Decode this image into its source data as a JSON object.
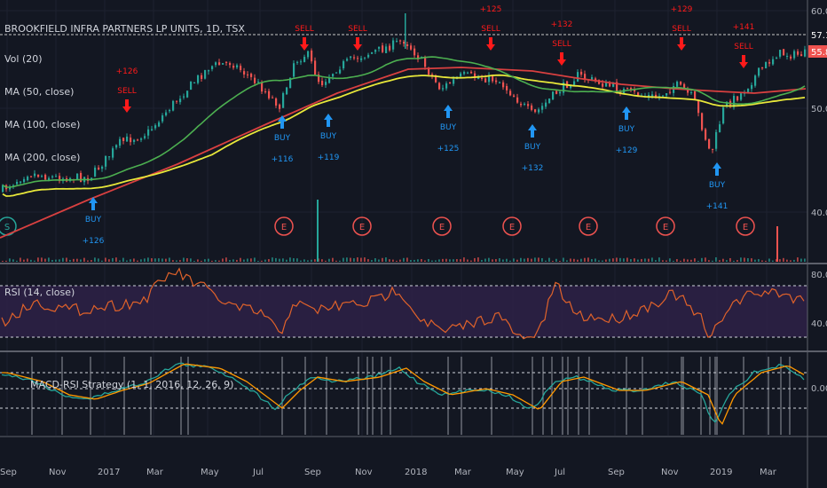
{
  "header": {
    "title": "BROOKFIELD INFRA PARTNERS LP UNITS, 1D, TSX",
    "studies": [
      "Vol (20)",
      "MA (50, close)",
      "MA (100, close)",
      "MA (200, close)"
    ]
  },
  "rsi_label": "RSI (14, close)",
  "macd_label": "MACD-RSI Strategy (1, 1, 2016, 12, 26, 9)",
  "colors": {
    "background": "#131722",
    "price_up": "#26a69a",
    "price_down": "#ef5350",
    "ma50": "#4caf50",
    "ma100": "#e8e83a",
    "ma200": "#d94040",
    "rsi": "#e0622a",
    "rsi_band": "#2e2146",
    "macd": "#26a69a",
    "signal": "#ff9800",
    "buy": "#2196f3",
    "sell": "#ff1a1a",
    "last_price_tag": "#ef5350"
  },
  "axis": {
    "time_labels": [
      "Sep",
      "Nov",
      "2017",
      "Mar",
      "May",
      "Jul",
      "Sep",
      "Nov",
      "2018",
      "Mar",
      "May",
      "Jul",
      "Sep",
      "Nov",
      "2019",
      "Mar"
    ],
    "price_ticks": [
      "60.00",
      "50.00",
      "40.00"
    ],
    "reference_price": "57.16",
    "last_price": "55.83",
    "rsi_ticks": [
      "80.00",
      "40.00"
    ],
    "macd_ticks": [
      "0.00"
    ]
  },
  "chart_data": {
    "type": "line",
    "price_axis": {
      "ticks": [
        60,
        50,
        40
      ]
    },
    "rsi_axis": {
      "ticks": [
        80,
        40
      ],
      "band": [
        30,
        70
      ]
    },
    "macd_axis": {
      "ticks": [
        0
      ]
    },
    "signals": [
      {
        "type": "BUY",
        "value": "+126"
      },
      {
        "type": "SELL",
        "value": "+126"
      },
      {
        "type": "BUY",
        "value": "+116"
      },
      {
        "type": "SELL",
        "value": ""
      },
      {
        "type": "BUY",
        "value": "+119"
      },
      {
        "type": "SELL",
        "value": ""
      },
      {
        "type": "BUY",
        "value": "+125"
      },
      {
        "type": "SELL",
        "value": "+125"
      },
      {
        "type": "BUY",
        "value": "+132"
      },
      {
        "type": "SELL",
        "value": "+132"
      },
      {
        "type": "BUY",
        "value": "+129"
      },
      {
        "type": "SELL",
        "value": "+129"
      },
      {
        "type": "BUY",
        "value": "+141"
      },
      {
        "type": "SELL",
        "value": "+141"
      }
    ],
    "events": [
      {
        "label": "S"
      },
      {
        "label": "E"
      },
      {
        "label": "E"
      },
      {
        "label": "E"
      },
      {
        "label": "E"
      },
      {
        "label": "E"
      },
      {
        "label": "E"
      },
      {
        "label": "E"
      }
    ]
  }
}
